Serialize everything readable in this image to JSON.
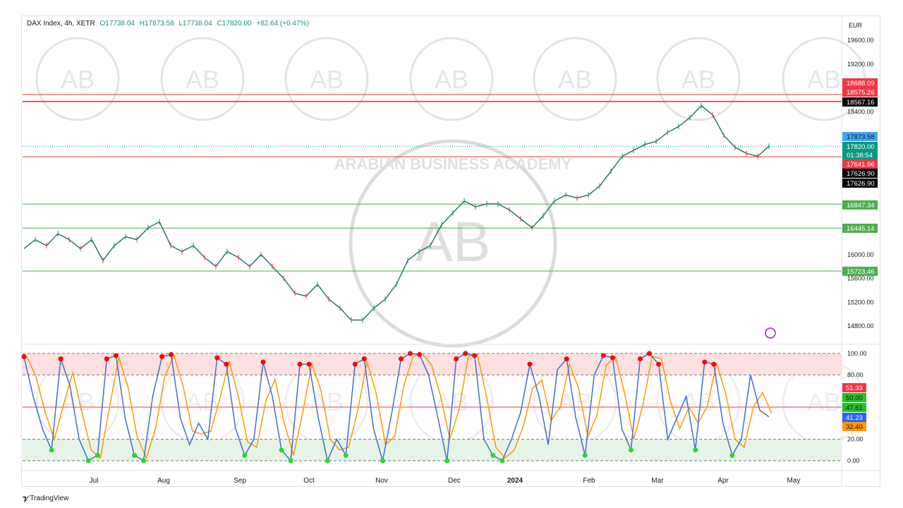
{
  "header": {
    "symbol": "DAX Index, 4h, XETR",
    "open": "O17738.04",
    "high": "H17873.58",
    "low": "L17738.04",
    "close": "C17820.00",
    "change": "+82.64 (+0.47%)",
    "currency": "EUR"
  },
  "branding": {
    "logo": "TradingView",
    "watermark": "ARABIAN BUSINESS ACADEMY",
    "watermark_mark": "AB"
  },
  "colors": {
    "up": "#089981",
    "down": "#f23645",
    "support": "#4caf50",
    "resistance": "#e53935",
    "osc_k": "#3f6fd1",
    "osc_d": "#ff9800"
  },
  "chart_data": [
    {
      "type": "line",
      "title": "DAX Index, 4h, XETR",
      "ylim": [
        14650,
        19800
      ],
      "y_ticks": [
        19600,
        19200,
        18400,
        16000,
        15600,
        15200,
        14800
      ],
      "x_ticks": [
        "Jul",
        "Aug",
        "Sep",
        "Oct",
        "Nov",
        "Dec",
        "2024",
        "Feb",
        "Mar",
        "Apr",
        "May"
      ],
      "price": [
        16100,
        16250,
        16150,
        16350,
        16250,
        16100,
        16250,
        15900,
        16150,
        16300,
        16250,
        16450,
        16550,
        16150,
        16050,
        16150,
        15950,
        15800,
        16050,
        15950,
        15800,
        16000,
        15800,
        15600,
        15350,
        15300,
        15500,
        15250,
        15100,
        14900,
        14900,
        15100,
        15250,
        15500,
        15900,
        16050,
        16150,
        16500,
        16700,
        16900,
        16800,
        16850,
        16850,
        16750,
        16600,
        16450,
        16650,
        16900,
        17000,
        16950,
        17000,
        17150,
        17400,
        17650,
        17750,
        17850,
        17900,
        18050,
        18150,
        18300,
        18500,
        18350,
        18000,
        17800,
        17700,
        17650,
        17820
      ],
      "price_levels": [
        {
          "value": "18688.09",
          "kind": "resistance"
        },
        {
          "value": "18575.26",
          "kind": "resistance"
        },
        {
          "value": "18567.16",
          "kind": "resistance"
        },
        {
          "value": "17641.96",
          "kind": "resistance"
        },
        {
          "value": "16847.34",
          "kind": "support"
        },
        {
          "value": "16445.14",
          "kind": "support"
        },
        {
          "value": "15723.46",
          "kind": "support"
        }
      ],
      "price_tags": [
        {
          "text": "18688.09",
          "bg": "#f23645",
          "fg": "#fff"
        },
        {
          "text": "18575.26",
          "bg": "#f23645",
          "fg": "#fff"
        },
        {
          "text": "18567.16",
          "bg": "#000000",
          "fg": "#fff"
        },
        {
          "text": "17873.58",
          "bg": "#42a5f5",
          "fg": "#131722"
        },
        {
          "text": "17820.00",
          "bg": "#089981",
          "fg": "#fff"
        },
        {
          "text": "01:38:54",
          "bg": "#089981",
          "fg": "#fff"
        },
        {
          "text": "17641.96",
          "bg": "#f23645",
          "fg": "#fff"
        },
        {
          "text": "17626.90",
          "bg": "#000000",
          "fg": "#fff"
        },
        {
          "text": "17626.90",
          "bg": "#000000",
          "fg": "#fff"
        },
        {
          "text": "16847.34",
          "bg": "#4caf50",
          "fg": "#fff"
        },
        {
          "text": "16445.14",
          "bg": "#4caf50",
          "fg": "#fff"
        },
        {
          "text": "15723.46",
          "bg": "#4caf50",
          "fg": "#fff"
        }
      ]
    },
    {
      "type": "line",
      "ylim": [
        0,
        100
      ],
      "y_ticks": [
        100,
        80,
        20,
        0
      ],
      "bands": {
        "overbought": [
          80,
          100
        ],
        "oversold": [
          0,
          20
        ],
        "midline": 50
      },
      "k": [
        97,
        60,
        30,
        10,
        95,
        70,
        20,
        0,
        5,
        95,
        98,
        40,
        5,
        0,
        60,
        97,
        99,
        40,
        15,
        35,
        20,
        96,
        90,
        30,
        5,
        20,
        92,
        60,
        10,
        0,
        90,
        90,
        40,
        0,
        20,
        5,
        90,
        95,
        30,
        0,
        45,
        95,
        100,
        99,
        80,
        40,
        0,
        95,
        100,
        98,
        20,
        5,
        0,
        20,
        45,
        90,
        60,
        15,
        85,
        95,
        40,
        5,
        80,
        98,
        96,
        30,
        10,
        95,
        100,
        90,
        20,
        40,
        60,
        10,
        92,
        90,
        35,
        5,
        20,
        80,
        47,
        41
      ],
      "osc_tags": [
        {
          "text": "51.33",
          "bg": "#f23645",
          "fg": "#fff"
        },
        {
          "text": "50.00",
          "bg": "#22c522",
          "fg": "#131722"
        },
        {
          "text": "47.61",
          "bg": "#22c522",
          "fg": "#131722"
        },
        {
          "text": "41.23",
          "bg": "#2962ff",
          "fg": "#fff"
        },
        {
          "text": "32.40",
          "bg": "#ff9800",
          "fg": "#131722"
        }
      ]
    }
  ]
}
